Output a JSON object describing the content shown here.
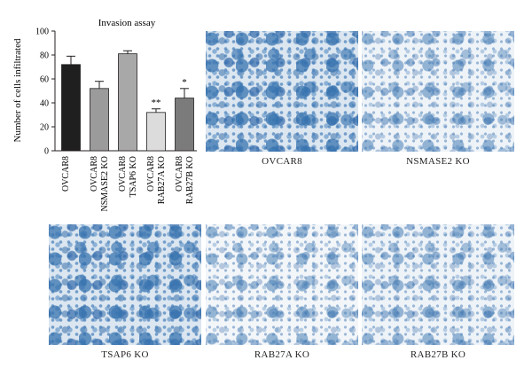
{
  "chart_data": {
    "type": "bar",
    "title": "Invasion assay",
    "ylabel": "Number of cells infiltrated",
    "xlabel": "",
    "ylim": [
      0,
      100
    ],
    "yticks": [
      0,
      20,
      40,
      60,
      80,
      100
    ],
    "categories": [
      [
        "OVCAR8"
      ],
      [
        "OVCAR8",
        "NSMASE2 KO"
      ],
      [
        "OVCAR8",
        "TSAP6 KO"
      ],
      [
        "OVCAR8",
        "RAB27A KO"
      ],
      [
        "OVCAR8",
        "RAB27B KO"
      ]
    ],
    "values": [
      72,
      52,
      81,
      32,
      44
    ],
    "errors": [
      7,
      6,
      2.5,
      3,
      8
    ],
    "significance": [
      "",
      "",
      "",
      "**",
      "*"
    ],
    "bar_colors": [
      "#1f1f1f",
      "#9b9b9b",
      "#a8a8a8",
      "#dcdcdc",
      "#7b7b7b"
    ]
  },
  "panels": [
    {
      "label": "OVCAR8",
      "density": "dense"
    },
    {
      "label": "NSMASE2 KO",
      "density": "medium"
    },
    {
      "label": "TSAP6 KO",
      "density": "dense"
    },
    {
      "label": "RAB27A KO",
      "density": "sparse"
    },
    {
      "label": "RAB27B KO",
      "density": "medium"
    }
  ]
}
